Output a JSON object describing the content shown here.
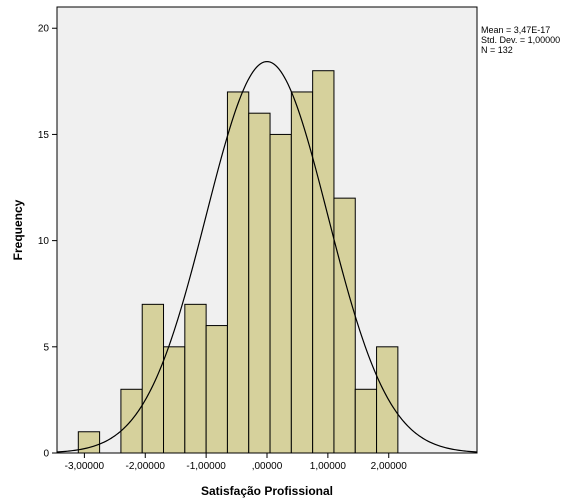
{
  "chart_data": {
    "type": "histogram",
    "xlabel": "Satisfação Profissional",
    "ylabel": "Frequency",
    "xlim": [
      -3.45,
      3.45
    ],
    "ylim": [
      0,
      21
    ],
    "x_ticks": [
      -3,
      -2,
      -1,
      0,
      1,
      2
    ],
    "x_tick_labels": [
      "-3,00000",
      "-2,00000",
      "-1,00000",
      ",00000",
      "1,00000",
      "2,00000"
    ],
    "y_ticks": [
      0,
      5,
      10,
      15,
      20
    ],
    "y_tick_labels": [
      "0",
      "5",
      "10",
      "15",
      "20"
    ],
    "bars": [
      {
        "x0": -3.1,
        "x1": -2.75,
        "value": 1
      },
      {
        "x0": -2.4,
        "x1": -2.05,
        "value": 3
      },
      {
        "x0": -2.05,
        "x1": -1.7,
        "value": 7
      },
      {
        "x0": -1.7,
        "x1": -1.35,
        "value": 5
      },
      {
        "x0": -1.35,
        "x1": -1.0,
        "value": 7
      },
      {
        "x0": -1.0,
        "x1": -0.65,
        "value": 6
      },
      {
        "x0": -0.65,
        "x1": -0.3,
        "value": 17
      },
      {
        "x0": -0.3,
        "x1": 0.05,
        "value": 16
      },
      {
        "x0": 0.05,
        "x1": 0.4,
        "value": 15
      },
      {
        "x0": 0.4,
        "x1": 0.75,
        "value": 17
      },
      {
        "x0": 0.75,
        "x1": 1.1,
        "value": 18
      },
      {
        "x0": 1.1,
        "x1": 1.45,
        "value": 12
      },
      {
        "x0": 1.45,
        "x1": 1.8,
        "value": 3
      },
      {
        "x0": 1.8,
        "x1": 2.15,
        "value": 5
      }
    ],
    "normal_curve": {
      "mean": 0,
      "std_dev": 1,
      "n": 132
    },
    "stats": [
      "Mean = 3,47E-17",
      "Std. Dev. = 1,00000",
      "N = 132"
    ],
    "colors": {
      "plot_background": "#f0f0f0",
      "bar_fill": "#d6d19c",
      "bar_stroke": "#000000",
      "curve": "#000000"
    },
    "grid": false
  }
}
